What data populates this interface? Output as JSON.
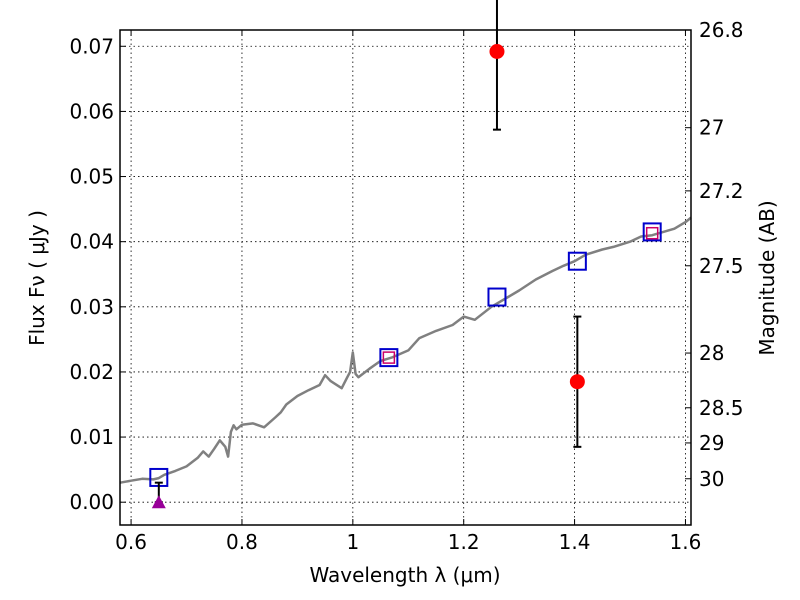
{
  "chart_data": {
    "type": "scatter",
    "xlabel": "Wavelength  λ (μm)",
    "ylabel": "Flux  Fν  ( μJy )",
    "ylabel_right": "Magnitude (AB)",
    "xlim": [
      0.58,
      1.61
    ],
    "ylim": [
      -0.0035,
      0.0725
    ],
    "grid": true,
    "x_ticks": [
      0.6,
      0.8,
      1.0,
      1.2,
      1.4,
      1.6
    ],
    "x_tick_labels": [
      "0.6",
      "0.8",
      "1",
      "1.2",
      "1.4",
      "1.6"
    ],
    "y_ticks": [
      0.0,
      0.01,
      0.02,
      0.03,
      0.04,
      0.05,
      0.06,
      0.07
    ],
    "y_tick_labels": [
      "0.00",
      "0.01",
      "0.02",
      "0.03",
      "0.04",
      "0.05",
      "0.06",
      "0.07"
    ],
    "right_ticks": [
      {
        "label": "26.8",
        "flux": 0.0725
      },
      {
        "label": "27",
        "flux": 0.0575
      },
      {
        "label": "27.2",
        "flux": 0.0478
      },
      {
        "label": "27.5",
        "flux": 0.0363
      },
      {
        "label": "28",
        "flux": 0.0229
      },
      {
        "label": "28.5",
        "flux": 0.0145
      },
      {
        "label": "29",
        "flux": 0.0091
      },
      {
        "label": "30",
        "flux": 0.0036
      }
    ],
    "series": [
      {
        "name": "model SED",
        "style": "line",
        "color": "#808080",
        "x": [
          0.58,
          0.6,
          0.62,
          0.64,
          0.65,
          0.66,
          0.68,
          0.7,
          0.72,
          0.73,
          0.74,
          0.75,
          0.76,
          0.77,
          0.775,
          0.78,
          0.785,
          0.79,
          0.8,
          0.82,
          0.84,
          0.86,
          0.87,
          0.88,
          0.9,
          0.92,
          0.94,
          0.95,
          0.96,
          0.98,
          0.99,
          0.995,
          1.0,
          1.005,
          1.01,
          1.03,
          1.05,
          1.07,
          1.1,
          1.12,
          1.15,
          1.18,
          1.2,
          1.22,
          1.25,
          1.28,
          1.3,
          1.33,
          1.36,
          1.38,
          1.4,
          1.42,
          1.45,
          1.47,
          1.5,
          1.52,
          1.54,
          1.56,
          1.58,
          1.6,
          1.61
        ],
        "y": [
          0.003,
          0.0033,
          0.0036,
          0.0035,
          0.0037,
          0.0042,
          0.0048,
          0.0055,
          0.0068,
          0.0078,
          0.007,
          0.0082,
          0.0095,
          0.0085,
          0.007,
          0.0108,
          0.0118,
          0.0112,
          0.0119,
          0.0121,
          0.0115,
          0.013,
          0.0138,
          0.015,
          0.0163,
          0.0172,
          0.018,
          0.0195,
          0.0186,
          0.0175,
          0.0192,
          0.02,
          0.023,
          0.0197,
          0.0192,
          0.0205,
          0.0217,
          0.0222,
          0.0233,
          0.0252,
          0.0263,
          0.0272,
          0.0285,
          0.028,
          0.03,
          0.0315,
          0.0325,
          0.0342,
          0.0355,
          0.0363,
          0.037,
          0.038,
          0.0388,
          0.0392,
          0.04,
          0.0408,
          0.041,
          0.0415,
          0.042,
          0.043,
          0.0437
        ]
      },
      {
        "name": "model photometry",
        "style": "open-square",
        "color": "#0000cc",
        "x": [
          0.65,
          1.065,
          1.26,
          1.405,
          1.54
        ],
        "y": [
          0.0038,
          0.0222,
          0.0315,
          0.037,
          0.0415
        ]
      },
      {
        "name": "observed photometry",
        "style": "open-square-small",
        "color": "#cc0066",
        "x": [
          1.065,
          1.54
        ],
        "y": [
          0.0222,
          0.0413
        ]
      },
      {
        "name": "detections",
        "style": "filled-circle",
        "color": "#ff0000",
        "x": [
          1.26,
          1.405
        ],
        "y": [
          0.0692,
          0.0185
        ],
        "err_low": [
          0.012,
          0.01
        ],
        "err_high": [
          0.01,
          0.01
        ]
      },
      {
        "name": "upper limit",
        "style": "filled-triangle",
        "color": "#990099",
        "x": [
          0.65
        ],
        "y": [
          0.0
        ],
        "err_low": [
          0.0
        ],
        "err_high": [
          0.003
        ]
      }
    ]
  }
}
